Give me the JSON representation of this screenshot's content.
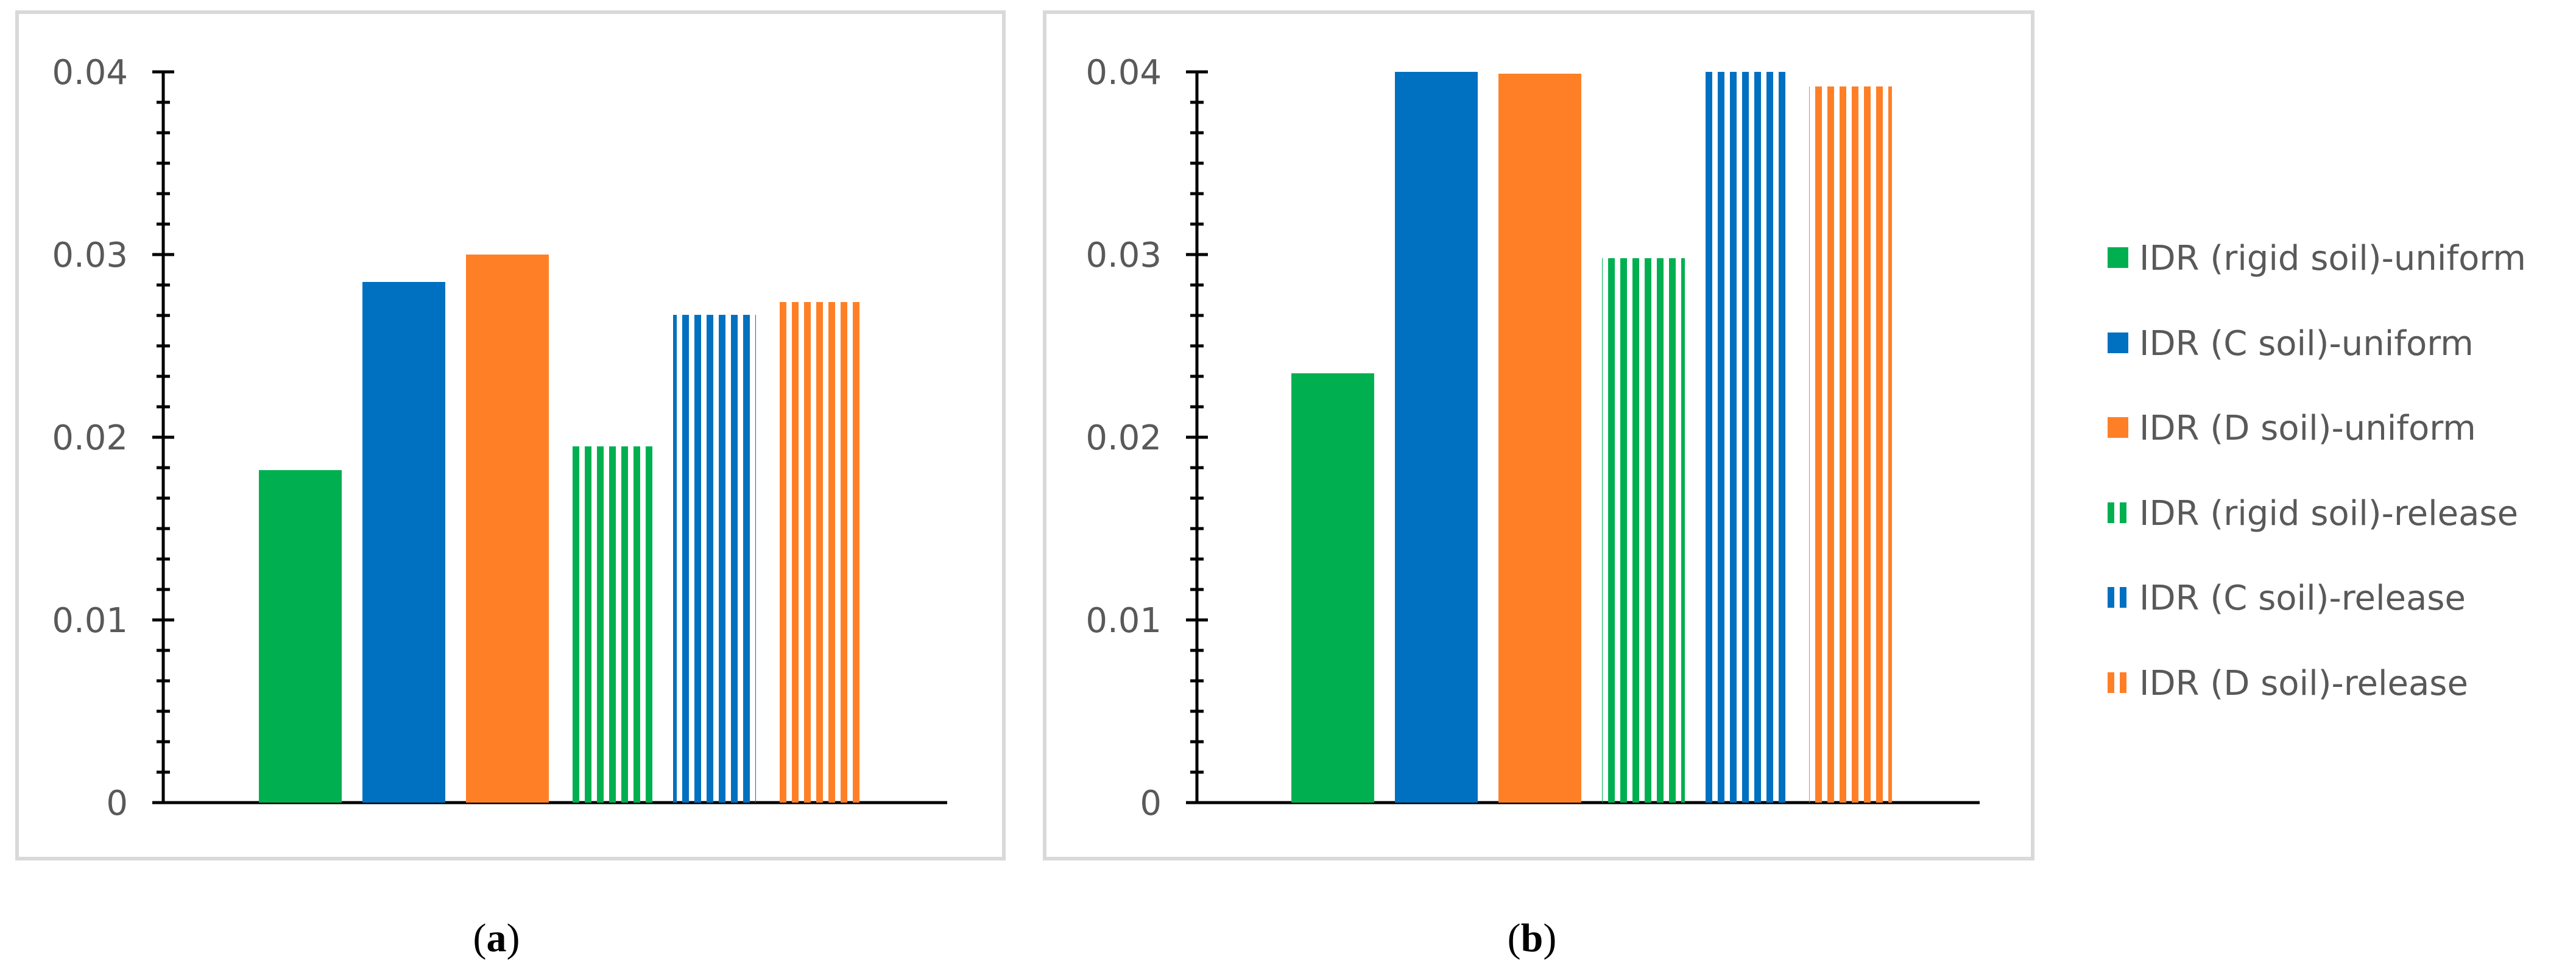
{
  "series_colors": {
    "rigid": "#00B050",
    "c": "#0070C0",
    "d": "#FF7F27"
  },
  "legend": [
    {
      "label": "IDR (rigid soil)-uniform",
      "color": "#00B050",
      "pattern": "solid"
    },
    {
      "label": "IDR (C soil)-uniform",
      "color": "#0070C0",
      "pattern": "solid"
    },
    {
      "label": "IDR (D soil)-uniform",
      "color": "#FF7F27",
      "pattern": "solid"
    },
    {
      "label": "IDR (rigid soil)-release",
      "color": "#00B050",
      "pattern": "striped"
    },
    {
      "label": "IDR (C soil)-release",
      "color": "#0070C0",
      "pattern": "striped"
    },
    {
      "label": "IDR (D soil)-release",
      "color": "#FF7F27",
      "pattern": "striped"
    }
  ],
  "chart_data": [
    {
      "type": "bar",
      "panel": "a",
      "caption_open": "(",
      "caption_letter": "a",
      "caption_close": ")",
      "categories": [
        "IDR (rigid soil)-uniform",
        "IDR (C soil)-uniform",
        "IDR (D soil)-uniform",
        "IDR (rigid soil)-release",
        "IDR (C soil)-release",
        "IDR (D soil)-release"
      ],
      "values": [
        0.0182,
        0.0285,
        0.03,
        0.0195,
        0.0267,
        0.0274
      ],
      "ylim": [
        0,
        0.04
      ],
      "yticks": [
        "0",
        "0.01",
        "0.02",
        "0.03",
        "0.04"
      ],
      "grid": false
    },
    {
      "type": "bar",
      "panel": "b",
      "caption_open": "(",
      "caption_letter": "b",
      "caption_close": ")",
      "categories": [
        "IDR (rigid soil)-uniform",
        "IDR (C soil)-uniform",
        "IDR (D soil)-uniform",
        "IDR (rigid soil)-release",
        "IDR (C soil)-release",
        "IDR (D soil)-release"
      ],
      "values": [
        0.0235,
        0.04,
        0.0399,
        0.0298,
        0.04,
        0.0392
      ],
      "ylim": [
        0,
        0.04
      ],
      "yticks": [
        "0",
        "0.01",
        "0.02",
        "0.03",
        "0.04"
      ],
      "grid": false
    }
  ]
}
